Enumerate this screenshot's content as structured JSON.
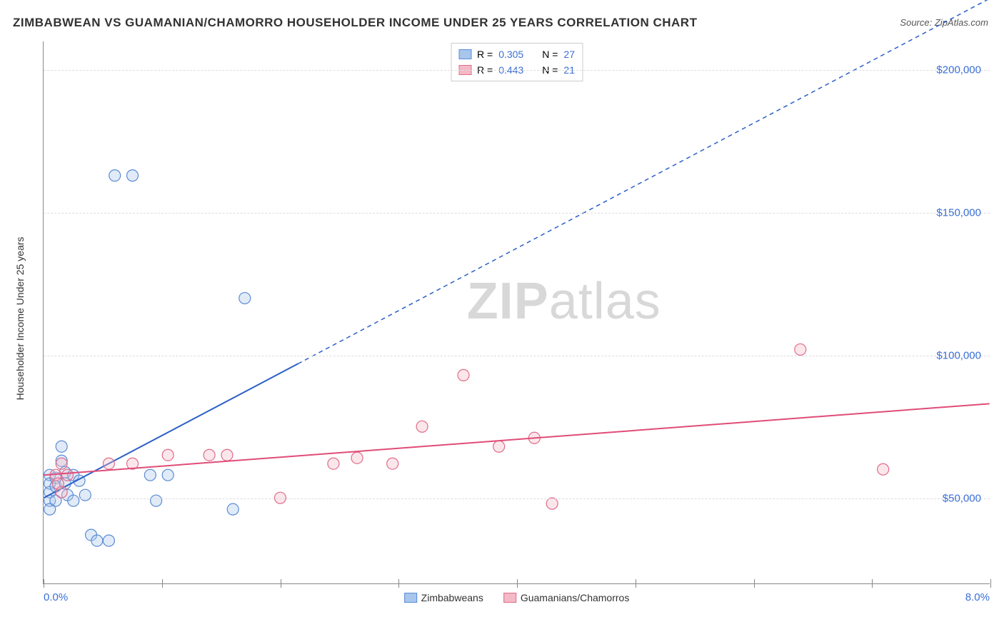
{
  "title": "ZIMBABWEAN VS GUAMANIAN/CHAMORRO HOUSEHOLDER INCOME UNDER 25 YEARS CORRELATION CHART",
  "source_label": "Source:",
  "source_site": "ZipAtlas.com",
  "watermark_bold": "ZIP",
  "watermark_light": "atlas",
  "yaxis_title": "Householder Income Under 25 years",
  "chart": {
    "type": "scatter",
    "xlim": [
      0,
      8
    ],
    "ylim": [
      20000,
      210000
    ],
    "x_ticks": [
      0,
      1,
      2,
      3,
      4,
      5,
      6,
      7,
      8
    ],
    "x_tick_labels_visible": {
      "0": "0.0%",
      "8": "8.0%"
    },
    "y_grid": [
      50000,
      100000,
      150000,
      200000
    ],
    "y_tick_labels": {
      "50000": "$50,000",
      "100000": "$100,000",
      "150000": "$150,000",
      "200000": "$200,000"
    },
    "marker_radius": 8,
    "background_color": "#ffffff",
    "grid_color": "#dddddd",
    "axis_color": "#888888",
    "label_color": "#3b6fd6",
    "series": [
      {
        "id": "zimbabweans",
        "label": "Zimbabweans",
        "fill": "#a8c6ec",
        "stroke": "#5a8bd6",
        "R": "0.305",
        "N": "27",
        "trend": {
          "x1": 0,
          "y1": 50000,
          "x2": 2.15,
          "y2": 97000,
          "x2_dash": 8,
          "y2_dash": 225000,
          "color": "#2b5fc7",
          "width": 2
        },
        "points": [
          [
            0.05,
            58000
          ],
          [
            0.05,
            55000
          ],
          [
            0.05,
            52000
          ],
          [
            0.05,
            49000
          ],
          [
            0.05,
            46000
          ],
          [
            0.1,
            57000
          ],
          [
            0.1,
            54000
          ],
          [
            0.1,
            49000
          ],
          [
            0.15,
            68000
          ],
          [
            0.15,
            63000
          ],
          [
            0.18,
            59000
          ],
          [
            0.18,
            55000
          ],
          [
            0.2,
            51000
          ],
          [
            0.25,
            58000
          ],
          [
            0.25,
            49000
          ],
          [
            0.3,
            56000
          ],
          [
            0.35,
            51000
          ],
          [
            0.4,
            37000
          ],
          [
            0.45,
            35000
          ],
          [
            0.55,
            35000
          ],
          [
            0.6,
            163000
          ],
          [
            0.75,
            163000
          ],
          [
            0.9,
            58000
          ],
          [
            0.95,
            49000
          ],
          [
            1.05,
            58000
          ],
          [
            1.6,
            46000
          ],
          [
            1.7,
            120000
          ]
        ]
      },
      {
        "id": "guamanians",
        "label": "Guamanians/Chamorros",
        "fill": "#f4b9c7",
        "stroke": "#e06b8a",
        "R": "0.443",
        "N": "21",
        "trend": {
          "x1": 0,
          "y1": 58000,
          "x2": 8,
          "y2": 83000,
          "color": "#e04c78",
          "width": 2
        },
        "points": [
          [
            0.1,
            58000
          ],
          [
            0.12,
            55000
          ],
          [
            0.15,
            62000
          ],
          [
            0.15,
            52000
          ],
          [
            0.2,
            58000
          ],
          [
            0.55,
            62000
          ],
          [
            0.75,
            62000
          ],
          [
            1.05,
            65000
          ],
          [
            1.4,
            65000
          ],
          [
            1.55,
            65000
          ],
          [
            2.0,
            50000
          ],
          [
            2.45,
            62000
          ],
          [
            2.65,
            64000
          ],
          [
            2.95,
            62000
          ],
          [
            3.2,
            75000
          ],
          [
            3.55,
            93000
          ],
          [
            3.85,
            68000
          ],
          [
            4.15,
            71000
          ],
          [
            4.3,
            48000
          ],
          [
            6.4,
            102000
          ],
          [
            7.1,
            60000
          ]
        ]
      }
    ]
  },
  "legend_top_labels": {
    "R": "R =",
    "N": "N ="
  }
}
